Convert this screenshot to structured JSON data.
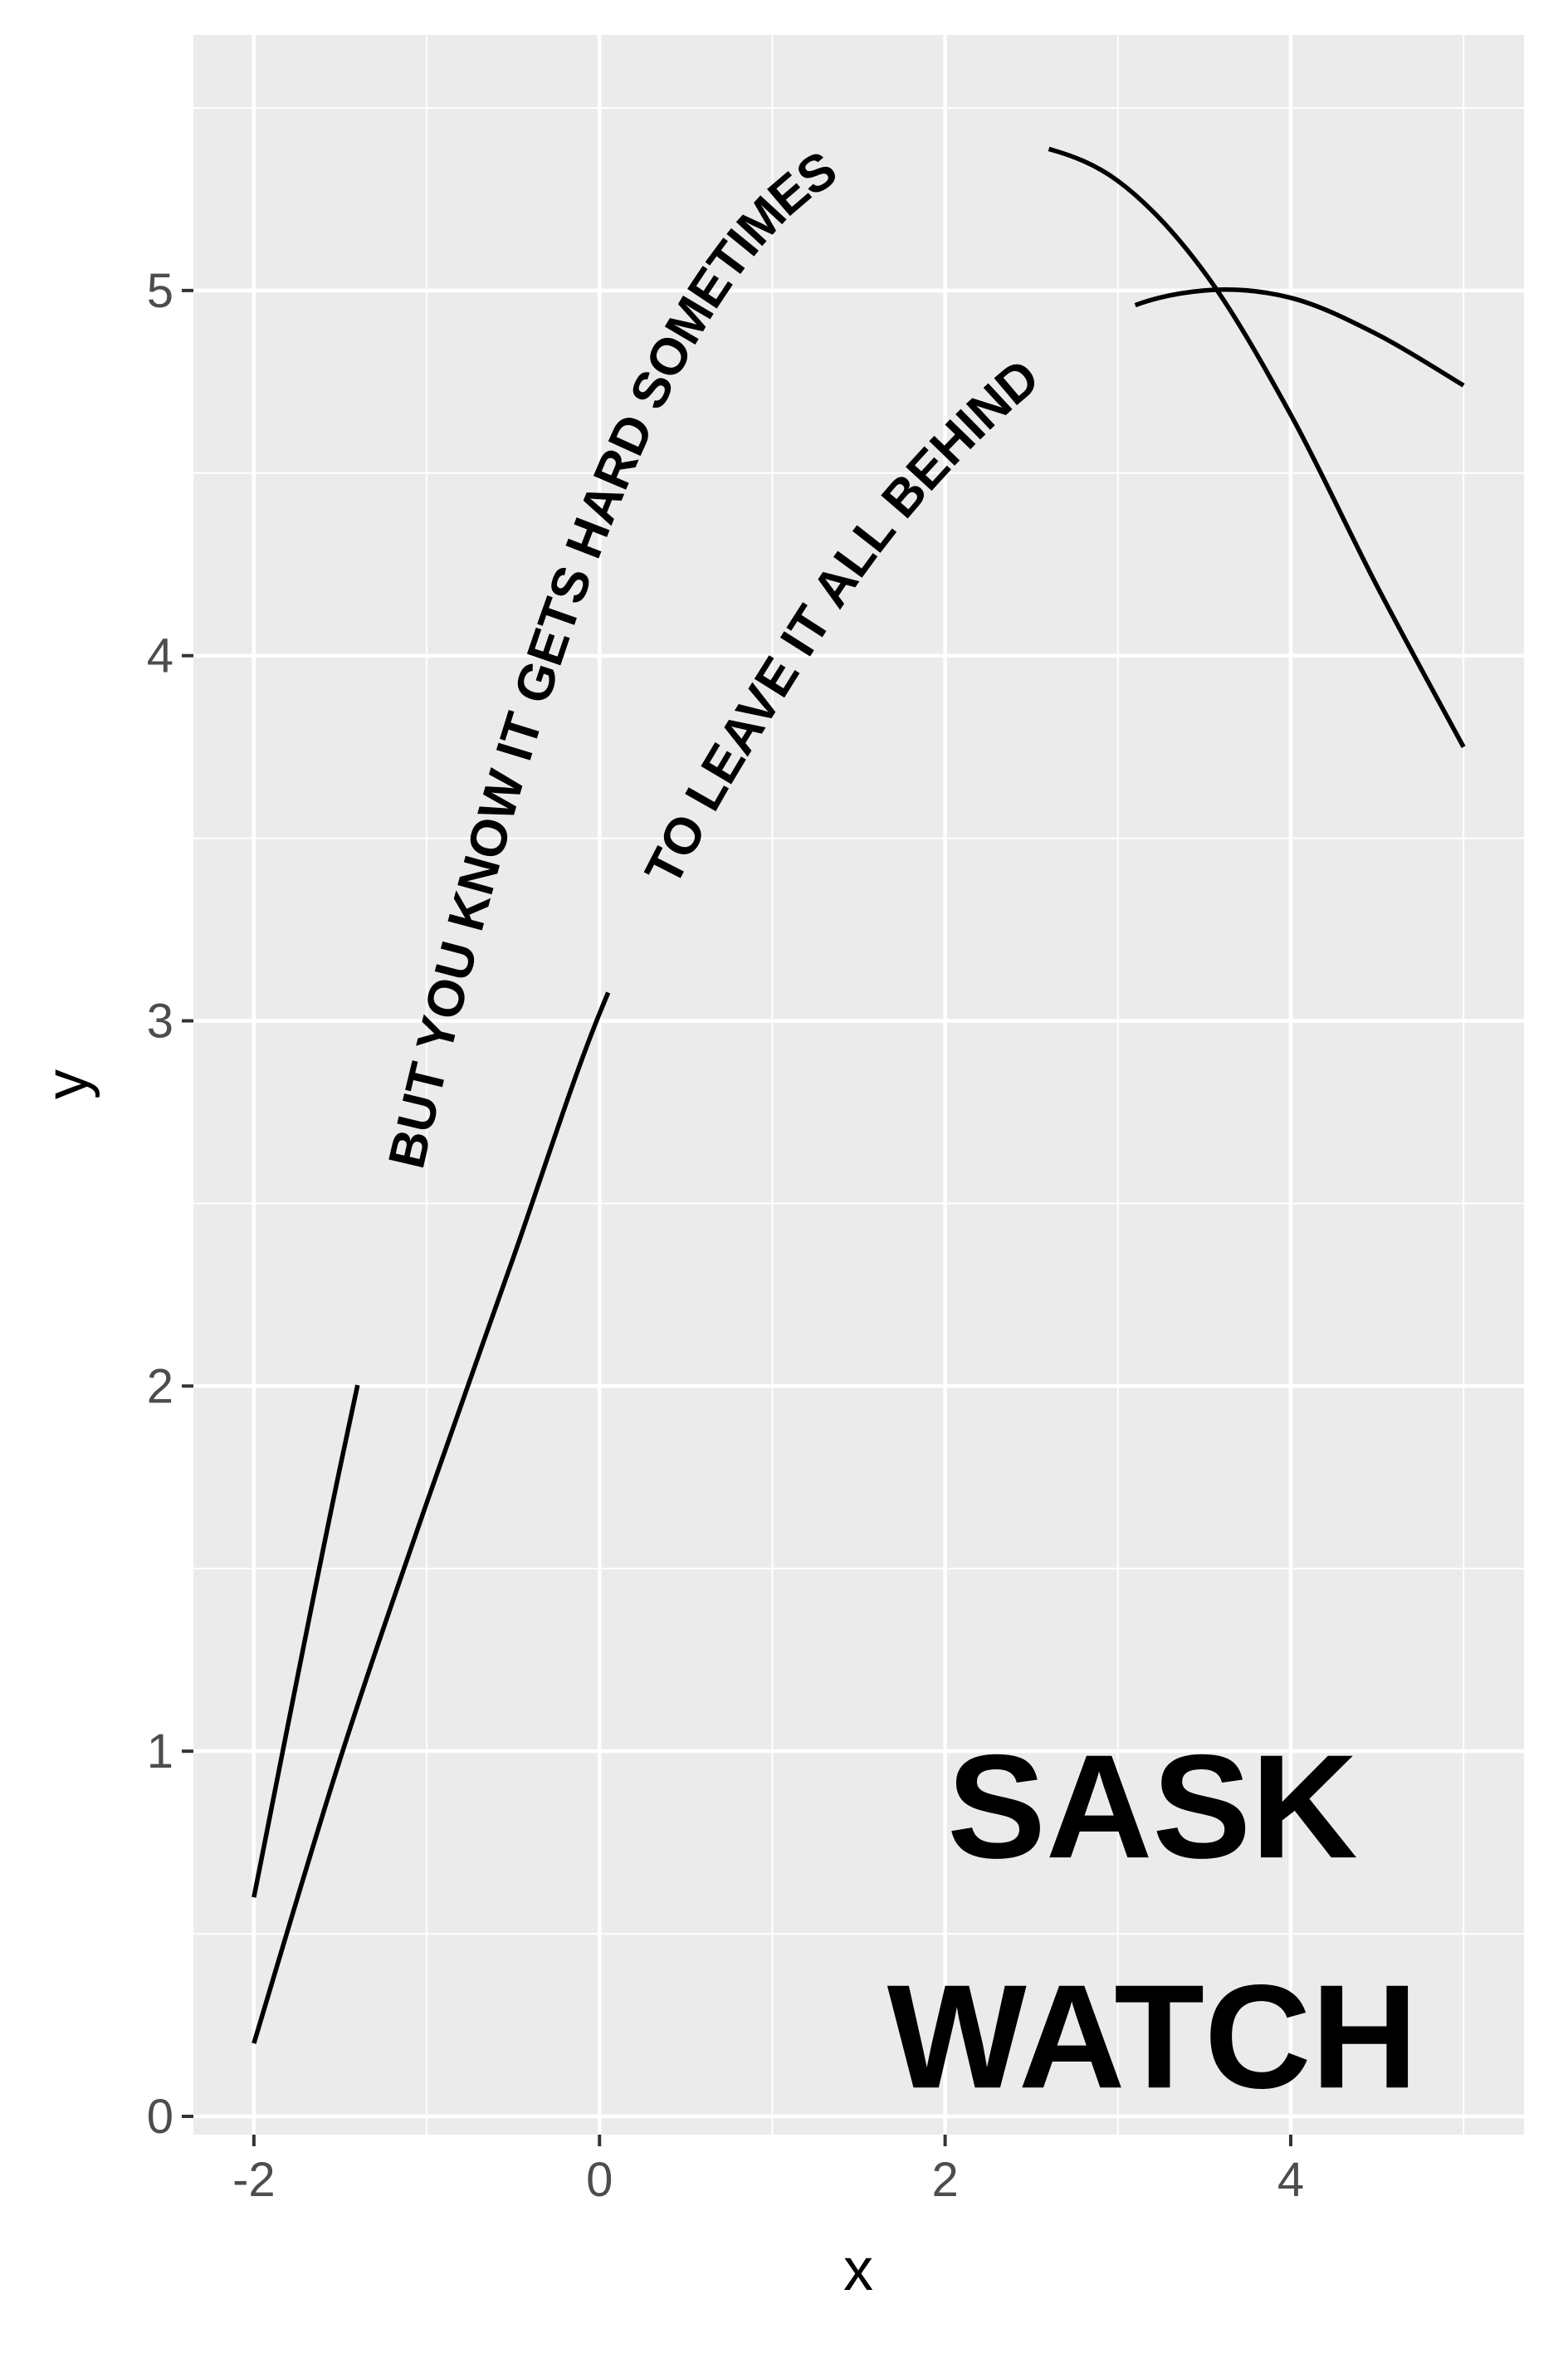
{
  "chart_data": {
    "type": "line",
    "xlabel": "x",
    "ylabel": "y",
    "xlim": [
      -2.35,
      5.35
    ],
    "ylim": [
      -0.05,
      5.7
    ],
    "x_ticks": [
      -2,
      0,
      2,
      4
    ],
    "y_ticks": [
      0,
      1,
      2,
      3,
      4,
      5
    ],
    "grid": true,
    "background": "#ebebeb",
    "series": [
      {
        "label": "BUT YOU KNOW IT GETS HARD SOMETIMES",
        "x": [
          -2.0,
          -1.5,
          -1.0,
          -0.5,
          0.0,
          0.5,
          1.0,
          1.5,
          2.0,
          2.5,
          3.0,
          3.5,
          4.0,
          4.5,
          5.0
        ],
        "y": [
          0.6,
          1.78,
          2.84,
          3.72,
          4.4,
          4.9,
          5.22,
          5.38,
          5.42,
          5.4,
          5.3,
          5.05,
          4.66,
          4.19,
          3.75
        ],
        "label_start_x": -1.4,
        "label_end_x": 2.6,
        "color": "#000000"
      },
      {
        "label": "TO LEAVE IT ALL BEHIND",
        "x": [
          -2.0,
          -1.5,
          -1.0,
          -0.5,
          0.0,
          0.5,
          1.0,
          1.5,
          2.0,
          2.5,
          3.0,
          3.5,
          4.0,
          4.5,
          5.0
        ],
        "y": [
          0.2,
          0.98,
          1.68,
          2.35,
          3.02,
          3.52,
          3.92,
          4.28,
          4.56,
          4.78,
          4.94,
          5.0,
          4.98,
          4.88,
          4.74
        ],
        "label_start_x": 0.05,
        "label_end_x": 3.1,
        "color": "#000000"
      }
    ],
    "annotation": {
      "lines": [
        "SASK",
        "WATCH"
      ],
      "x_center": 3.2,
      "y_lines": [
        0.85,
        0.22
      ]
    }
  }
}
